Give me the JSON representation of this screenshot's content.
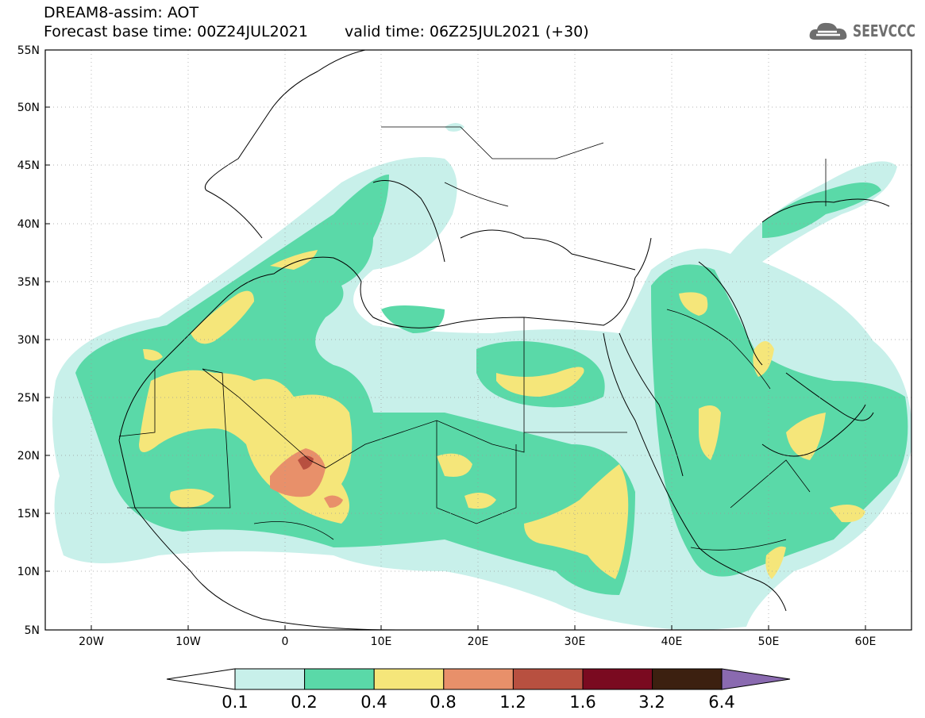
{
  "title": {
    "line1": "DREAM8-assim: AOT",
    "base_time": "Forecast base time: 00Z24JUL2021",
    "valid_time": "valid time: 06Z25JUL2021 (+30)"
  },
  "logo": {
    "text": "SEEVCCC",
    "icon": "cloud-icon"
  },
  "axes": {
    "lat_labels": [
      "55N",
      "50N",
      "45N",
      "40N",
      "35N",
      "30N",
      "25N",
      "20N",
      "15N",
      "10N",
      "5N"
    ],
    "lon_labels": [
      "20W",
      "10W",
      "0",
      "10E",
      "20E",
      "30E",
      "40E",
      "50E",
      "60E"
    ]
  },
  "colorbar": {
    "colors": [
      "#c8f0ea",
      "#5ad9a8",
      "#f5e67a",
      "#e8906a",
      "#b85040",
      "#7a0a20",
      "#3c2010",
      "#8a6ab0"
    ],
    "tick_labels": [
      "0.1",
      "0.2",
      "0.4",
      "0.8",
      "1.2",
      "1.6",
      "3.2",
      "6.4"
    ]
  }
}
